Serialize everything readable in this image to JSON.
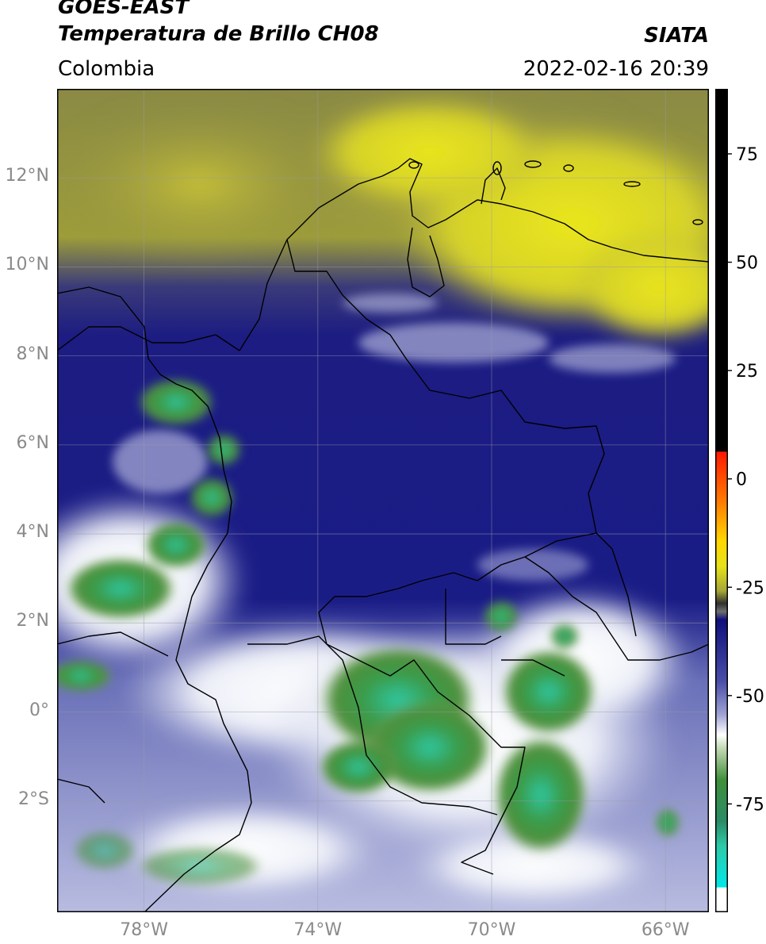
{
  "header": {
    "satellite": "GOES-EAST",
    "product": "Temperatura de Brillo CH08",
    "institution": "SIATA",
    "region": "Colombia",
    "datetime": "2022-02-16 20:39"
  },
  "map": {
    "lon_range": [
      -80,
      -65
    ],
    "lat_range": [
      -4.5,
      14.0
    ],
    "lat_ticks": [
      {
        "value": 12,
        "label": "12°N"
      },
      {
        "value": 10,
        "label": "10°N"
      },
      {
        "value": 8,
        "label": "8°N"
      },
      {
        "value": 6,
        "label": "6°N"
      },
      {
        "value": 4,
        "label": "4°N"
      },
      {
        "value": 2,
        "label": "2°N"
      },
      {
        "value": 0,
        "label": "0°"
      },
      {
        "value": -2,
        "label": "2°S"
      }
    ],
    "lon_ticks": [
      {
        "value": -78,
        "label": "78°W"
      },
      {
        "value": -74,
        "label": "74°W"
      },
      {
        "value": -70,
        "label": "70°W"
      },
      {
        "value": -66,
        "label": "66°W"
      }
    ],
    "colors": {
      "dry_yellow": "#d8d428",
      "olive": "#9a9a3a",
      "deep_blue": "#1a1a80",
      "mid_blue": "#4a4ea8",
      "cloud_white": "#f4f6fa",
      "cold_green": "#3f8f3a",
      "coldest_teal": "#2ec9a8"
    }
  },
  "colorbar": {
    "range": [
      -100,
      90
    ],
    "tick_labels": [
      {
        "value": 75,
        "label": "75"
      },
      {
        "value": 50,
        "label": "50"
      },
      {
        "value": 25,
        "label": "25"
      },
      {
        "value": 0,
        "label": "0"
      },
      {
        "value": -25,
        "label": "-25"
      },
      {
        "value": -50,
        "label": "-50"
      },
      {
        "value": -75,
        "label": "-75"
      }
    ]
  }
}
